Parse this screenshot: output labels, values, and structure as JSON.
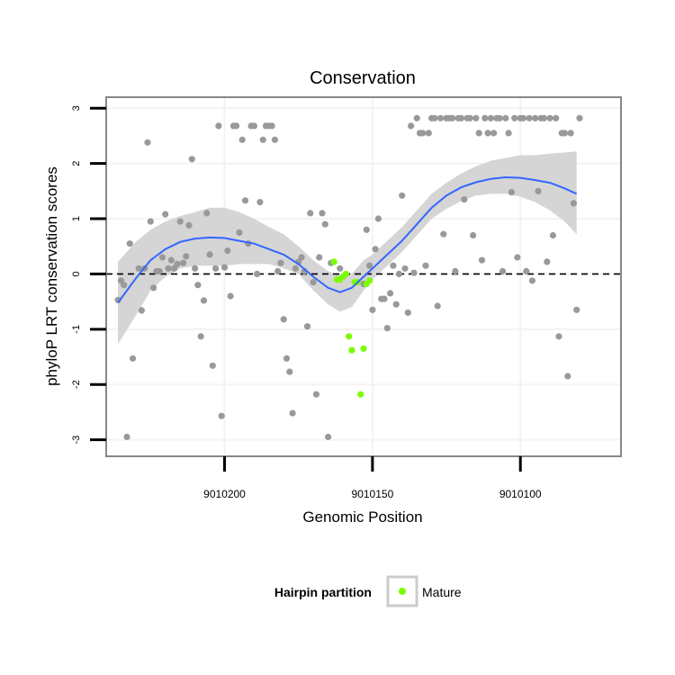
{
  "chart_data": {
    "type": "scatter",
    "title": "Conservation",
    "xlabel": "Genomic Position",
    "ylabel": "phyloP LRT conservation scores",
    "x_reversed": true,
    "xlim": [
      9010240,
      9010066
    ],
    "ylim": [
      -3.3,
      3.2
    ],
    "x_ticks": [
      9010200,
      9010150,
      9010100
    ],
    "x_tick_labels": [
      "9010200",
      "9010150",
      "9010100"
    ],
    "y_ticks": [
      -3,
      -2,
      -1,
      0,
      1,
      2,
      3
    ],
    "y_tick_labels": [
      "-3",
      "-2",
      "-1",
      "0",
      "1",
      "2",
      "3"
    ],
    "grid": true,
    "reference_line": 0,
    "legend": {
      "position": "bottom",
      "title": "Hairpin partition",
      "items": [
        {
          "label": "Mature",
          "color": "#7cfc00"
        }
      ]
    },
    "colors": {
      "background": "#ffffff",
      "panel_border": "#888888",
      "smooth": "#3366ff",
      "ribbon": "#d3d3d3",
      "points": "#999999",
      "mature": "#7cfc00",
      "gridline": "#f3f3f3"
    },
    "series": [
      {
        "name": "",
        "color": "#999999",
        "points": [
          [
            9010236,
            -0.47
          ],
          [
            9010235,
            -0.12
          ],
          [
            9010234,
            -0.2
          ],
          [
            9010233,
            -2.95
          ],
          [
            9010232,
            0.55
          ],
          [
            9010231,
            -1.53
          ],
          [
            9010229,
            0.1
          ],
          [
            9010228,
            -0.66
          ],
          [
            9010227,
            0.1
          ],
          [
            9010226,
            2.38
          ],
          [
            9010225,
            0.95
          ],
          [
            9010224,
            -0.25
          ],
          [
            9010223,
            0.05
          ],
          [
            9010222,
            0.05
          ],
          [
            9010221,
            0.3
          ],
          [
            9010220,
            1.08
          ],
          [
            9010219,
            0.1
          ],
          [
            9010218,
            0.25
          ],
          [
            9010217,
            0.1
          ],
          [
            9010216,
            0.18
          ],
          [
            9010215,
            0.95
          ],
          [
            9010214,
            0.2
          ],
          [
            9010213,
            0.32
          ],
          [
            9010212,
            0.88
          ],
          [
            9010211,
            2.08
          ],
          [
            9010210,
            0.1
          ],
          [
            9010209,
            -0.2
          ],
          [
            9010208,
            -1.13
          ],
          [
            9010207,
            -0.48
          ],
          [
            9010206,
            1.1
          ],
          [
            9010205,
            0.35
          ],
          [
            9010204,
            -1.66
          ],
          [
            9010203,
            0.1
          ],
          [
            9010202,
            2.68
          ],
          [
            9010201,
            -2.57
          ],
          [
            9010200,
            0.12
          ],
          [
            9010199,
            0.42
          ],
          [
            9010198,
            -0.4
          ],
          [
            9010197,
            2.68
          ],
          [
            9010196,
            2.68
          ],
          [
            9010195,
            0.75
          ],
          [
            9010194,
            2.43
          ],
          [
            9010193,
            1.33
          ],
          [
            9010192,
            0.55
          ],
          [
            9010191,
            2.68
          ],
          [
            9010190,
            2.68
          ],
          [
            9010189,
            0.0
          ],
          [
            9010188,
            1.3
          ],
          [
            9010187,
            2.43
          ],
          [
            9010186,
            2.68
          ],
          [
            9010185,
            2.68
          ],
          [
            9010184,
            2.68
          ],
          [
            9010183,
            2.43
          ],
          [
            9010182,
            0.05
          ],
          [
            9010181,
            0.2
          ],
          [
            9010180,
            -0.82
          ],
          [
            9010179,
            -1.53
          ],
          [
            9010178,
            -1.77
          ],
          [
            9010177,
            -2.52
          ],
          [
            9010176,
            0.1
          ],
          [
            9010175,
            0.22
          ],
          [
            9010174,
            0.3
          ],
          [
            9010173,
            0.05
          ],
          [
            9010172,
            -0.95
          ],
          [
            9010171,
            1.1
          ],
          [
            9010170,
            -0.15
          ],
          [
            9010169,
            -2.18
          ],
          [
            9010168,
            0.3
          ],
          [
            9010167,
            1.1
          ],
          [
            9010166,
            0.9
          ],
          [
            9010165,
            -2.95
          ],
          [
            9010164,
            0.2
          ],
          [
            9010161,
            0.1
          ],
          [
            9010160,
            -0.05
          ],
          [
            9010153,
            -0.18
          ],
          [
            9010152,
            0.8
          ],
          [
            9010151,
            0.15
          ],
          [
            9010150,
            -0.65
          ],
          [
            9010149,
            0.45
          ],
          [
            9010148,
            1.0
          ],
          [
            9010147,
            -0.45
          ],
          [
            9010146,
            -0.45
          ],
          [
            9010145,
            -0.98
          ],
          [
            9010144,
            -0.35
          ],
          [
            9010143,
            0.15
          ],
          [
            9010142,
            -0.55
          ],
          [
            9010141,
            0.0
          ],
          [
            9010140,
            1.42
          ],
          [
            9010139,
            0.1
          ],
          [
            9010138,
            -0.7
          ],
          [
            9010137,
            2.68
          ],
          [
            9010136,
            0.02
          ],
          [
            9010135,
            2.82
          ],
          [
            9010134,
            2.55
          ],
          [
            9010133,
            2.55
          ],
          [
            9010132,
            0.15
          ],
          [
            9010131,
            2.55
          ],
          [
            9010130,
            2.82
          ],
          [
            9010129,
            2.82
          ],
          [
            9010128,
            -0.58
          ],
          [
            9010127,
            2.82
          ],
          [
            9010126,
            0.72
          ],
          [
            9010125,
            2.82
          ],
          [
            9010124,
            2.82
          ],
          [
            9010123,
            2.82
          ],
          [
            9010122,
            0.05
          ],
          [
            9010121,
            2.82
          ],
          [
            9010120,
            2.82
          ],
          [
            9010119,
            1.35
          ],
          [
            9010118,
            2.82
          ],
          [
            9010117,
            2.82
          ],
          [
            9010116,
            0.7
          ],
          [
            9010115,
            2.82
          ],
          [
            9010114,
            2.55
          ],
          [
            9010113,
            0.25
          ],
          [
            9010112,
            2.82
          ],
          [
            9010111,
            2.55
          ],
          [
            9010110,
            2.82
          ],
          [
            9010109,
            2.55
          ],
          [
            9010108,
            2.82
          ],
          [
            9010107,
            2.82
          ],
          [
            9010106,
            0.05
          ],
          [
            9010105,
            2.82
          ],
          [
            9010104,
            2.55
          ],
          [
            9010103,
            1.48
          ],
          [
            9010102,
            2.82
          ],
          [
            9010101,
            0.3
          ],
          [
            9010100,
            2.82
          ],
          [
            9010099,
            2.82
          ],
          [
            9010098,
            0.05
          ],
          [
            9010097,
            2.82
          ],
          [
            9010096,
            -0.12
          ],
          [
            9010095,
            2.82
          ],
          [
            9010094,
            1.5
          ],
          [
            9010093,
            2.82
          ],
          [
            9010092,
            2.82
          ],
          [
            9010091,
            0.22
          ],
          [
            9010090,
            2.82
          ],
          [
            9010089,
            0.7
          ],
          [
            9010088,
            2.82
          ],
          [
            9010087,
            -1.13
          ],
          [
            9010086,
            2.55
          ],
          [
            9010085,
            2.55
          ],
          [
            9010084,
            -1.85
          ],
          [
            9010083,
            2.55
          ],
          [
            9010082,
            1.28
          ],
          [
            9010081,
            -0.65
          ],
          [
            9010080,
            2.82
          ]
        ]
      },
      {
        "name": "Mature",
        "color": "#7cfc00",
        "points": [
          [
            9010163,
            0.22
          ],
          [
            9010162,
            -0.1
          ],
          [
            9010161,
            -0.1
          ],
          [
            9010160,
            -0.05
          ],
          [
            9010159,
            0.0
          ],
          [
            9010158,
            -1.13
          ],
          [
            9010157,
            -1.38
          ],
          [
            9010156,
            -0.15
          ],
          [
            9010155,
            -0.15
          ],
          [
            9010154,
            -2.18
          ],
          [
            9010153,
            -1.35
          ],
          [
            9010152,
            -0.18
          ],
          [
            9010151,
            -0.12
          ]
        ]
      }
    ],
    "smooth": {
      "name": "",
      "color": "#3366ff",
      "points": [
        [
          9010236,
          -0.52,
          -1.27,
          0.22
        ],
        [
          9010230,
          -0.08,
          -0.75,
          0.58
        ],
        [
          9010225,
          0.25,
          -0.3,
          0.8
        ],
        [
          9010220,
          0.45,
          -0.05,
          0.95
        ],
        [
          9010215,
          0.58,
          0.1,
          1.05
        ],
        [
          9010210,
          0.64,
          0.15,
          1.12
        ],
        [
          9010205,
          0.66,
          0.15,
          1.2
        ],
        [
          9010200,
          0.65,
          0.15,
          1.2
        ],
        [
          9010195,
          0.6,
          0.18,
          1.12
        ],
        [
          9010190,
          0.55,
          0.18,
          1.0
        ],
        [
          9010185,
          0.45,
          0.18,
          0.85
        ],
        [
          9010180,
          0.35,
          0.1,
          0.72
        ],
        [
          9010175,
          0.18,
          0.0,
          0.5
        ],
        [
          9010170,
          -0.05,
          -0.3,
          0.25
        ],
        [
          9010165,
          -0.25,
          -0.55,
          0.05
        ],
        [
          9010161,
          -0.33,
          -0.68,
          -0.02
        ],
        [
          9010157,
          -0.25,
          -0.6,
          0.0
        ],
        [
          9010153,
          -0.05,
          -0.3,
          0.25
        ],
        [
          9010150,
          0.1,
          -0.1,
          0.35
        ],
        [
          9010145,
          0.35,
          0.15,
          0.6
        ],
        [
          9010140,
          0.6,
          0.4,
          0.85
        ],
        [
          9010135,
          0.9,
          0.7,
          1.15
        ],
        [
          9010130,
          1.2,
          1.0,
          1.45
        ],
        [
          9010125,
          1.42,
          1.18,
          1.65
        ],
        [
          9010120,
          1.57,
          1.32,
          1.82
        ],
        [
          9010115,
          1.66,
          1.42,
          1.95
        ],
        [
          9010110,
          1.72,
          1.45,
          2.05
        ],
        [
          9010105,
          1.75,
          1.45,
          2.1
        ],
        [
          9010100,
          1.74,
          1.4,
          2.15
        ],
        [
          9010095,
          1.7,
          1.3,
          2.15
        ],
        [
          9010090,
          1.65,
          1.15,
          2.18
        ],
        [
          9010085,
          1.55,
          0.95,
          2.2
        ],
        [
          9010081,
          1.45,
          0.72,
          2.22
        ]
      ]
    }
  }
}
